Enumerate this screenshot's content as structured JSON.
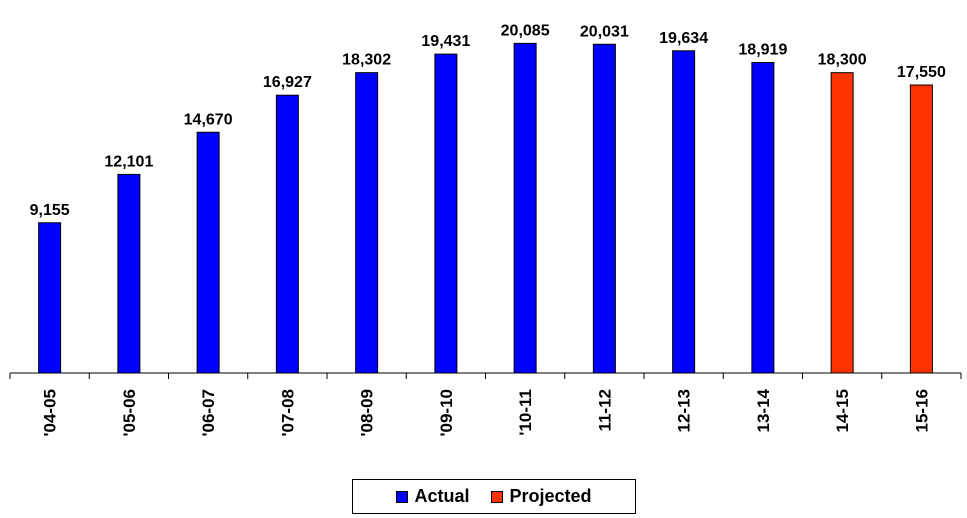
{
  "chart_data": {
    "type": "bar",
    "categories": [
      "'04-05",
      "'05-06",
      "'06-07",
      "'07-08",
      "'08-09",
      "'09-10",
      "'10-11",
      "11-12",
      "12-13",
      "13-14",
      "14-15",
      "15-16"
    ],
    "values": [
      9155,
      12101,
      14670,
      16927,
      18302,
      19431,
      20085,
      20031,
      19634,
      18919,
      18300,
      17550
    ],
    "value_labels": [
      "9,155",
      "12,101",
      "14,670",
      "16,927",
      "18,302",
      "19,431",
      "20,085",
      "20,031",
      "19,634",
      "18,919",
      "18,300",
      "17,550"
    ],
    "series_type": [
      "Actual",
      "Actual",
      "Actual",
      "Actual",
      "Actual",
      "Actual",
      "Actual",
      "Actual",
      "Actual",
      "Actual",
      "Projected",
      "Projected"
    ],
    "ylim": [
      0,
      20718
    ],
    "grid": false,
    "legend_placement": "bottom-center",
    "colors": {
      "Actual": "#0000ff",
      "Projected": "#ff3300"
    }
  },
  "legend": {
    "actual_label": "Actual",
    "projected_label": "Projected"
  }
}
